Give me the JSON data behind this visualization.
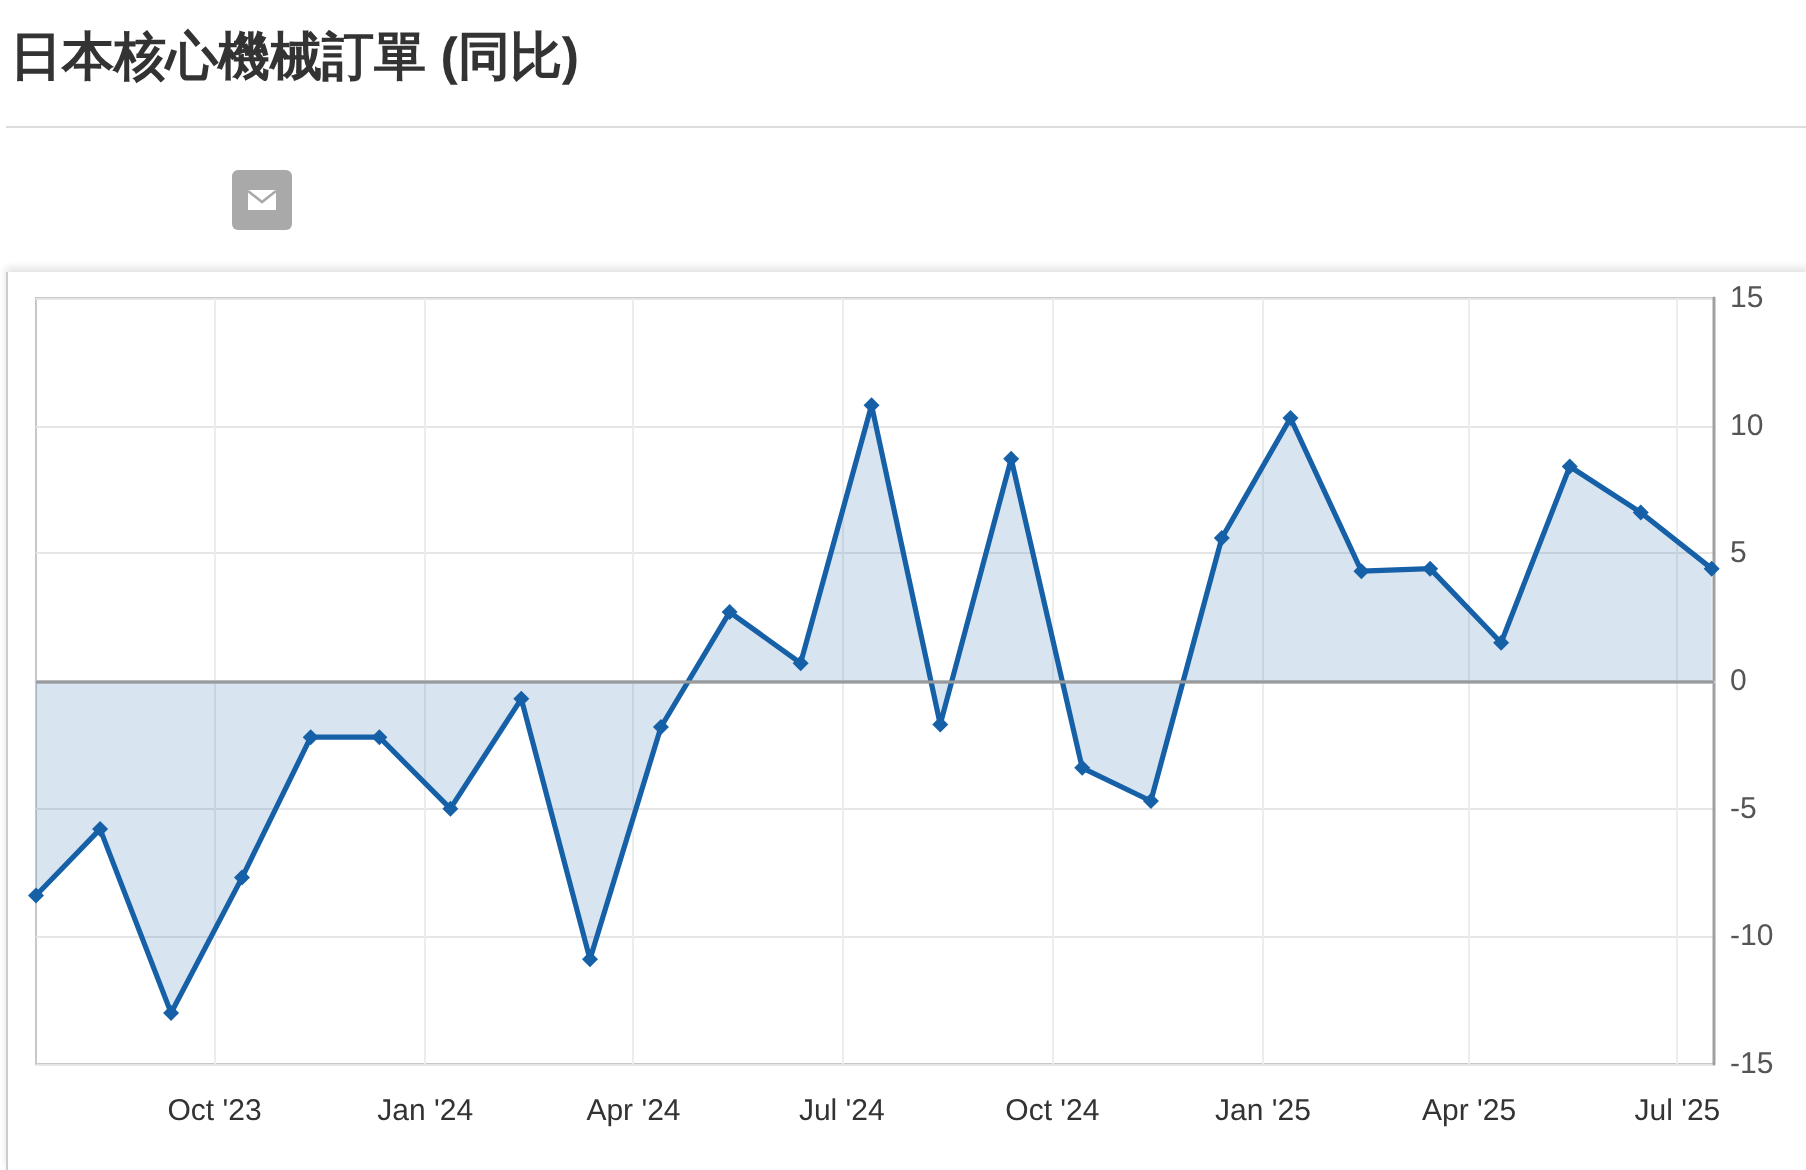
{
  "chart_data": {
    "type": "area",
    "title": "日本核心機械訂單 (同比)",
    "x": [
      "2023-07-15",
      "2023-08-12",
      "2023-09-12",
      "2023-10-13",
      "2023-11-12",
      "2023-12-12",
      "2024-01-12",
      "2024-02-12",
      "2024-03-13",
      "2024-04-13",
      "2024-05-13",
      "2024-06-13",
      "2024-07-14",
      "2024-08-13",
      "2024-09-13",
      "2024-10-14",
      "2024-11-13",
      "2024-12-14",
      "2025-01-13",
      "2025-02-13",
      "2025-03-15",
      "2025-04-15",
      "2025-05-15",
      "2025-06-15",
      "2025-07-16"
    ],
    "series": [
      {
        "color": "#1660a8",
        "values": [
          -8.4,
          -5.8,
          -13.0,
          -7.7,
          -2.2,
          -2.2,
          -5.0,
          -0.7,
          -10.9,
          -1.8,
          2.7,
          0.7,
          10.8,
          -1.7,
          8.7,
          -3.4,
          -4.7,
          5.6,
          10.3,
          4.3,
          4.4,
          1.5,
          8.4,
          6.6,
          4.4
        ]
      }
    ],
    "xlim": [
      "2023-07-15",
      "2025-07-17"
    ],
    "xticks": [
      {
        "value": "2023-10-01",
        "label": "Oct '23"
      },
      {
        "value": "2024-01-01",
        "label": "Jan '24"
      },
      {
        "value": "2024-04-01",
        "label": "Apr '24"
      },
      {
        "value": "2024-07-01",
        "label": "Jul '24"
      },
      {
        "value": "2024-10-01",
        "label": "Oct '24"
      },
      {
        "value": "2025-01-01",
        "label": "Jan '25"
      },
      {
        "value": "2025-04-01",
        "label": "Apr '25"
      },
      {
        "value": "2025-07-01",
        "label": "Jul '25"
      }
    ],
    "ylim": [
      -15,
      15
    ],
    "yticks": [
      -15,
      -10,
      -5,
      0,
      5,
      10,
      15
    ],
    "grid": true,
    "marker": "diamond",
    "line_style": "solid",
    "ref_lines": [
      {
        "axis": "y",
        "value": 0,
        "color": "#9a9a9a"
      }
    ]
  }
}
